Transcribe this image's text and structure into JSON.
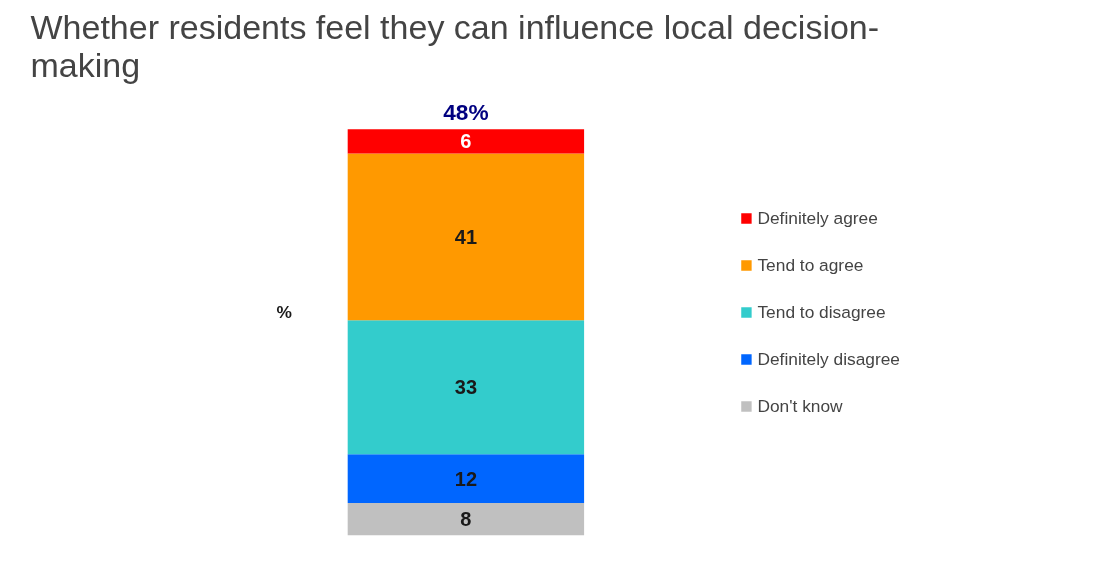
{
  "chart_data": {
    "type": "bar",
    "title": "Whether residents feel they can influence local decision-\nmaking",
    "categories": [
      null
    ],
    "stacked": true,
    "data_labels": true,
    "legend": "right",
    "grid": false,
    "series": [
      {
        "name": "Don't know",
        "color": "#c0c0c0",
        "values": [
          8
        ]
      },
      {
        "name": "Definitely disagree",
        "color": "#0066ff",
        "values": [
          12
        ]
      },
      {
        "name": "Tend to disagree",
        "color": "#33cccc",
        "values": [
          33
        ]
      },
      {
        "name": "Tend to agree",
        "color": "#ff9900",
        "values": [
          41
        ]
      },
      {
        "name": "Definitely agree",
        "color": "#ff0000",
        "values": [
          6
        ]
      }
    ],
    "annotations": [
      "48%",
      "%"
    ]
  }
}
